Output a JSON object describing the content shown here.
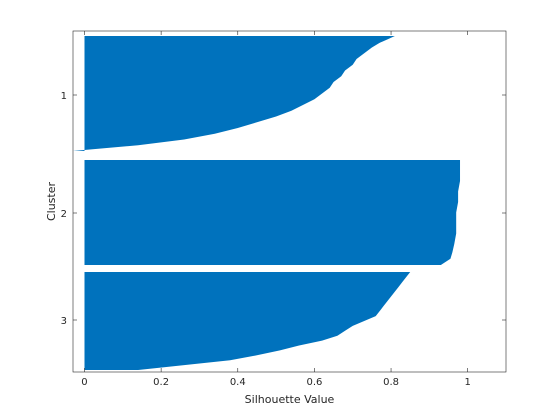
{
  "chart_data": {
    "type": "bar",
    "orientation": "horizontal",
    "title": "",
    "xlabel": "Silhouette Value",
    "ylabel": "Cluster",
    "xlim": [
      -0.03,
      1.1
    ],
    "xticks": [
      0,
      0.2,
      0.4,
      0.6,
      0.8,
      1
    ],
    "xtick_labels": [
      "0",
      "0.2",
      "0.4",
      "0.6",
      "0.8",
      "1"
    ],
    "yticks": [
      "1",
      "2",
      "3"
    ],
    "grid": false,
    "legend": "none",
    "bar_color": "#0072BD",
    "clusters": [
      {
        "label": "1",
        "profile": [
          [
            0.0,
            0.81
          ],
          [
            0.03,
            0.79
          ],
          [
            0.06,
            0.77
          ],
          [
            0.1,
            0.75
          ],
          [
            0.15,
            0.73
          ],
          [
            0.2,
            0.71
          ],
          [
            0.25,
            0.7
          ],
          [
            0.3,
            0.68
          ],
          [
            0.35,
            0.67
          ],
          [
            0.4,
            0.65
          ],
          [
            0.45,
            0.64
          ],
          [
            0.5,
            0.62
          ],
          [
            0.55,
            0.6
          ],
          [
            0.6,
            0.57
          ],
          [
            0.65,
            0.54
          ],
          [
            0.7,
            0.5
          ],
          [
            0.75,
            0.45
          ],
          [
            0.8,
            0.4
          ],
          [
            0.85,
            0.34
          ],
          [
            0.9,
            0.26
          ],
          [
            0.95,
            0.14
          ],
          [
            1.0,
            -0.03
          ]
        ]
      },
      {
        "label": "2",
        "profile": [
          [
            0.0,
            0.98
          ],
          [
            0.1,
            0.98
          ],
          [
            0.2,
            0.98
          ],
          [
            0.3,
            0.975
          ],
          [
            0.4,
            0.975
          ],
          [
            0.5,
            0.97
          ],
          [
            0.6,
            0.97
          ],
          [
            0.7,
            0.97
          ],
          [
            0.8,
            0.965
          ],
          [
            0.88,
            0.96
          ],
          [
            0.94,
            0.955
          ],
          [
            1.0,
            0.93
          ]
        ]
      },
      {
        "label": "3",
        "profile": [
          [
            0.0,
            0.85
          ],
          [
            0.05,
            0.84
          ],
          [
            0.1,
            0.83
          ],
          [
            0.15,
            0.82
          ],
          [
            0.2,
            0.81
          ],
          [
            0.25,
            0.8
          ],
          [
            0.3,
            0.79
          ],
          [
            0.35,
            0.78
          ],
          [
            0.4,
            0.77
          ],
          [
            0.45,
            0.76
          ],
          [
            0.5,
            0.73
          ],
          [
            0.55,
            0.7
          ],
          [
            0.6,
            0.68
          ],
          [
            0.65,
            0.66
          ],
          [
            0.7,
            0.62
          ],
          [
            0.75,
            0.56
          ],
          [
            0.8,
            0.51
          ],
          [
            0.85,
            0.45
          ],
          [
            0.9,
            0.38
          ],
          [
            0.95,
            0.26
          ],
          [
            1.0,
            0.14
          ]
        ]
      }
    ]
  }
}
